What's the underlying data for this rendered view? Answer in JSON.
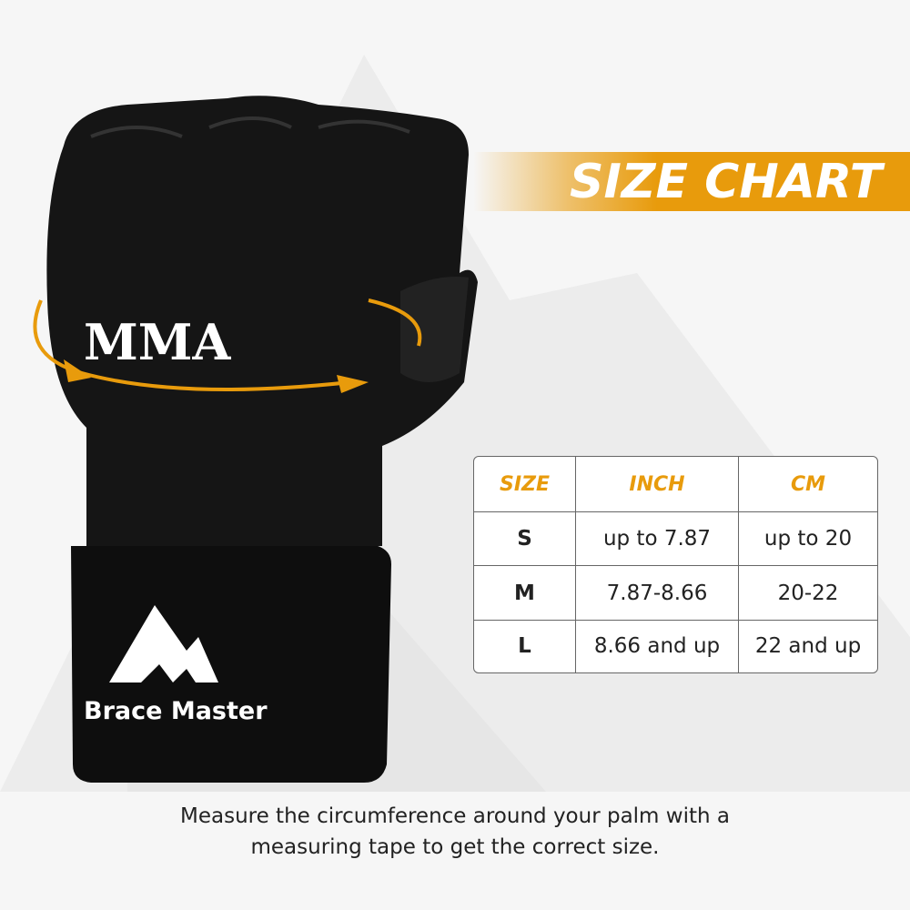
{
  "banner": {
    "title": "SIZE CHART"
  },
  "product": {
    "glove_print": "MMA",
    "brand_logo_text": "Brace Master"
  },
  "size_table": {
    "headers": [
      "SIZE",
      "INCH",
      "CM"
    ],
    "rows": [
      [
        "S",
        "up to 7.87",
        "up to 20"
      ],
      [
        "M",
        "7.87-8.66",
        "20-22"
      ],
      [
        "L",
        "8.66 and up",
        "22 and up"
      ]
    ]
  },
  "caption": {
    "line1": "Measure the circumference around your palm with a",
    "line2": "measuring tape to get the correct size."
  },
  "colors": {
    "accent": "#e89b0c",
    "background": "#f6f6f6",
    "glove": "#151515"
  }
}
